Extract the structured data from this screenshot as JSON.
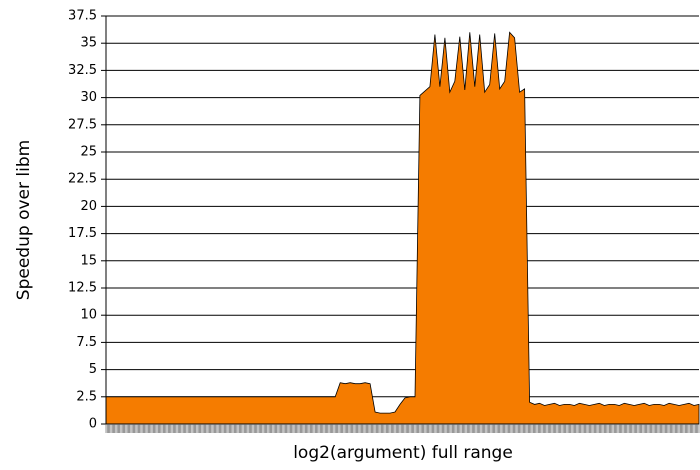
{
  "chart_data": {
    "type": "area",
    "x_label": "log2(argument) full range",
    "y_label": "Speedup over libm",
    "color": "#f57c00",
    "grid": true,
    "ylim": [
      0,
      37.5
    ],
    "yticks": [
      0,
      2.5,
      5,
      7.5,
      10,
      12.5,
      15,
      17.5,
      20,
      22.5,
      25,
      27.5,
      30,
      32.5,
      35,
      37.5
    ],
    "categories": [
      null,
      null,
      null,
      null,
      null,
      null,
      null,
      null,
      null,
      null,
      null,
      null,
      null,
      null,
      null,
      null,
      null,
      null,
      null,
      null,
      null,
      null,
      null,
      null,
      null,
      null,
      null,
      null,
      null,
      null,
      null,
      null,
      null,
      null,
      null,
      null,
      null,
      null,
      null,
      null,
      null,
      null,
      null,
      null,
      null,
      null,
      null,
      null,
      null,
      null,
      null,
      null,
      null,
      null,
      null,
      null,
      null,
      null,
      null,
      null,
      null,
      null,
      null,
      null,
      null,
      null,
      null,
      null,
      null,
      null,
      null,
      null,
      null,
      null,
      null,
      null,
      null,
      null,
      null,
      null,
      null,
      null,
      null,
      null,
      null,
      null,
      null,
      null,
      null,
      null,
      null,
      null,
      null,
      null,
      null,
      null,
      null,
      null,
      null,
      null,
      null,
      null,
      null,
      null,
      null,
      null,
      null,
      null,
      null,
      null,
      null,
      null,
      null,
      null,
      null,
      null,
      null,
      null,
      null,
      null
    ],
    "values": [
      2.5,
      2.5,
      2.5,
      2.5,
      2.5,
      2.5,
      2.5,
      2.5,
      2.5,
      2.5,
      2.5,
      2.5,
      2.5,
      2.5,
      2.5,
      2.5,
      2.5,
      2.5,
      2.5,
      2.5,
      2.5,
      2.5,
      2.5,
      2.5,
      2.5,
      2.5,
      2.5,
      2.5,
      2.5,
      2.5,
      2.5,
      2.5,
      2.5,
      2.5,
      2.5,
      2.5,
      2.5,
      2.5,
      2.5,
      2.5,
      2.5,
      2.5,
      2.5,
      2.5,
      2.5,
      2.5,
      2.5,
      3.8,
      3.7,
      3.8,
      3.7,
      3.7,
      3.8,
      3.7,
      1.1,
      1.0,
      1.0,
      1.0,
      1.1,
      1.8,
      2.4,
      2.5,
      2.5,
      30.2,
      30.6,
      31,
      35.8,
      31,
      35.5,
      30.5,
      31.5,
      35.6,
      30.7,
      36,
      31,
      35.8,
      30.5,
      31.2,
      35.9,
      30.8,
      31.5,
      36,
      35.5,
      30.5,
      30.8,
      2.0,
      1.8,
      1.9,
      1.7,
      1.8,
      1.9,
      1.7,
      1.8,
      1.8,
      1.7,
      1.9,
      1.8,
      1.7,
      1.8,
      1.9,
      1.7,
      1.8,
      1.8,
      1.7,
      1.9,
      1.8,
      1.7,
      1.8,
      1.9,
      1.7,
      1.8,
      1.8,
      1.7,
      1.9,
      1.8,
      1.7,
      1.8,
      1.9,
      1.7,
      1.8
    ]
  }
}
